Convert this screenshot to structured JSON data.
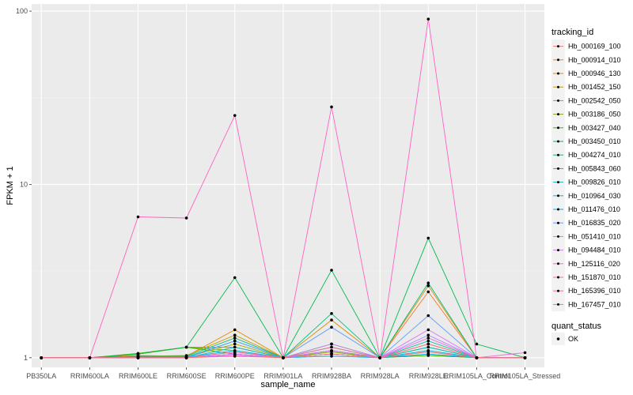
{
  "chart_data": {
    "type": "line",
    "xlabel": "sample_name",
    "ylabel": "FPKM + 1",
    "y_scale": "log10",
    "ylim": [
      0.88,
      110
    ],
    "y_ticks": [
      1,
      10,
      100
    ],
    "y_tick_labels": [
      "1",
      "10",
      "100"
    ],
    "categories": [
      "PB350LA",
      "RRIM600LA",
      "RRIM600LE",
      "RRIM600SE",
      "RRIM600PE",
      "RRIM901LA",
      "RRIM928BA",
      "RRIM928LA",
      "RRIM928LE",
      "RRIM105LA_Control",
      "RRIM105LA_Stressed"
    ],
    "legend_title": "tracking_id",
    "series": [
      {
        "name": "Hb_000169_100",
        "color": "#F8766D",
        "values": [
          1,
          1,
          1.0,
          1.0,
          1.05,
          1,
          1.05,
          1,
          1.1,
          1,
          1
        ]
      },
      {
        "name": "Hb_000914_010",
        "color": "#F2792E",
        "values": [
          1,
          1,
          1.05,
          1.15,
          1.15,
          1,
          1.1,
          1,
          2.4,
          1,
          1
        ]
      },
      {
        "name": "Hb_000946_130",
        "color": "#DE8C00",
        "values": [
          1,
          1,
          1.03,
          1.02,
          1.45,
          1,
          1.65,
          1,
          2.6,
          1,
          1
        ]
      },
      {
        "name": "Hb_001452_150",
        "color": "#C59900",
        "values": [
          1,
          1,
          1.02,
          1.03,
          1.35,
          1,
          1.2,
          1,
          1.2,
          1,
          1
        ]
      },
      {
        "name": "Hb_002542_050",
        "color": "#A3A500",
        "values": [
          1,
          1,
          1.01,
          1.01,
          1.2,
          1,
          1.1,
          1,
          1.15,
          1,
          1
        ]
      },
      {
        "name": "Hb_003186_050",
        "color": "#7CAE00",
        "values": [
          1,
          1,
          1.05,
          1.15,
          1.1,
          1,
          1.08,
          1,
          1.05,
          1,
          1
        ]
      },
      {
        "name": "Hb_003427_040",
        "color": "#39B600",
        "values": [
          1,
          1,
          1.06,
          1.15,
          1.05,
          1,
          1.05,
          1,
          1.03,
          1,
          1
        ]
      },
      {
        "name": "Hb_003450_010",
        "color": "#00BB4E",
        "values": [
          1,
          1,
          1.05,
          1.15,
          2.9,
          1,
          3.2,
          1,
          4.9,
          1.2,
          1
        ]
      },
      {
        "name": "Hb_004274_010",
        "color": "#00BF7D",
        "values": [
          1,
          1,
          1.02,
          1.02,
          1.3,
          1,
          1.8,
          1,
          2.7,
          1,
          1
        ]
      },
      {
        "name": "Hb_005843_060",
        "color": "#00C1A3",
        "values": [
          1,
          1,
          1.01,
          1.01,
          1.25,
          1,
          1.15,
          1,
          1.25,
          1,
          1
        ]
      },
      {
        "name": "Hb_009826_010",
        "color": "#00BFC4",
        "values": [
          1,
          1,
          1.01,
          1.0,
          1.15,
          1,
          1.1,
          1,
          1.15,
          1,
          1
        ]
      },
      {
        "name": "Hb_010964_030",
        "color": "#00B8E7",
        "values": [
          1,
          1,
          1.02,
          1.01,
          1.1,
          1,
          1.05,
          1,
          1.1,
          1,
          1
        ]
      },
      {
        "name": "Hb_011476_010",
        "color": "#00A9FF",
        "values": [
          1,
          1,
          1.0,
          1.0,
          1.05,
          1,
          1.02,
          1,
          1.05,
          1,
          1
        ]
      },
      {
        "name": "Hb_016835_020",
        "color": "#619CFF",
        "values": [
          1,
          1,
          1.0,
          1.0,
          1.25,
          1,
          1.5,
          1,
          1.75,
          1,
          1
        ]
      },
      {
        "name": "Hb_051410_010",
        "color": "#A58AFF",
        "values": [
          1,
          1,
          1.0,
          1.0,
          1.08,
          1,
          1.2,
          1,
          1.35,
          1,
          1
        ]
      },
      {
        "name": "Hb_094484_010",
        "color": "#DB72FB",
        "values": [
          1,
          1,
          1.0,
          1.0,
          1.05,
          1,
          1.1,
          1,
          1.45,
          1,
          1
        ]
      },
      {
        "name": "Hb_125116_020",
        "color": "#F564E3",
        "values": [
          1,
          1,
          1.0,
          1.0,
          1.03,
          1,
          1.05,
          1,
          1.3,
          1,
          1.07
        ]
      },
      {
        "name": "Hb_151870_010",
        "color": "#FF61C3",
        "values": [
          1,
          1,
          6.5,
          6.4,
          25,
          1,
          28,
          1,
          90,
          1,
          1
        ]
      },
      {
        "name": "Hb_165396_010",
        "color": "#FF6C91",
        "values": [
          1,
          1,
          1.0,
          1.0,
          1.08,
          1,
          1.15,
          1,
          1.2,
          1,
          1
        ]
      },
      {
        "name": "Hb_167457_010",
        "color": "#F8766D",
        "values": [
          1,
          1,
          1.0,
          1.0,
          1.02,
          1,
          1.05,
          1,
          1.08,
          1,
          1
        ]
      }
    ],
    "points_legend": {
      "title": "quant_status",
      "label": "OK"
    },
    "grid": true,
    "legend_position": "right"
  }
}
